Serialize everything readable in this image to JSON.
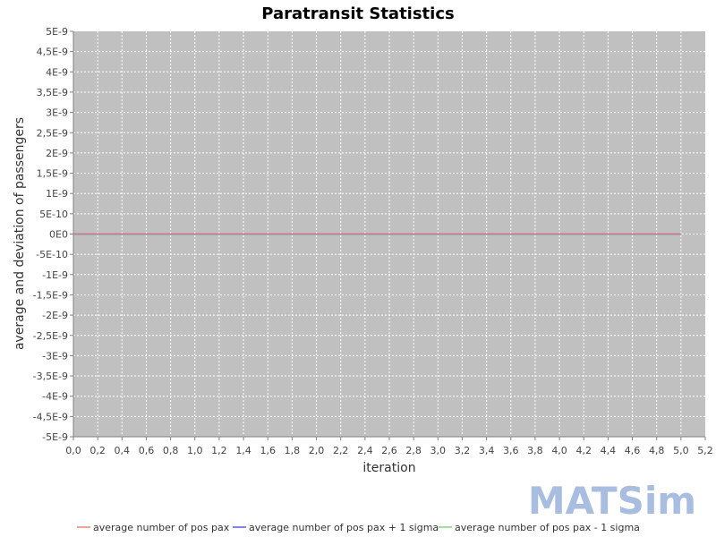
{
  "chart_data": {
    "type": "line",
    "title": "Paratransit Statistics",
    "xlabel": "iteration",
    "ylabel": "average and deviation of passengers",
    "xlim": [
      0.0,
      5.2
    ],
    "ylim": [
      -5e-09,
      5e-09
    ],
    "x_ticks": [
      "0,0",
      "0,2",
      "0,4",
      "0,6",
      "0,8",
      "1,0",
      "1,2",
      "1,4",
      "1,6",
      "1,8",
      "2,0",
      "2,2",
      "2,4",
      "2,6",
      "2,8",
      "3,0",
      "3,2",
      "3,4",
      "3,6",
      "3,8",
      "4,0",
      "4,2",
      "4,4",
      "4,6",
      "4,8",
      "5,0",
      "5,2"
    ],
    "y_ticks": [
      "5E-9",
      "4,5E-9",
      "4E-9",
      "3,5E-9",
      "3E-9",
      "2,5E-9",
      "2E-9",
      "1,5E-9",
      "1E-9",
      "5E-10",
      "0E0",
      "-5E-10",
      "-1E-9",
      "-1,5E-9",
      "-2E-9",
      "-2,5E-9",
      "-3E-9",
      "-3,5E-9",
      "-4E-9",
      "-4,5E-9",
      "-5E-9"
    ],
    "grid": true,
    "legend_position": "bottom",
    "x": [
      0,
      1,
      2,
      3,
      4,
      5
    ],
    "series": [
      {
        "name": "average number of pos pax",
        "color": "#e8837a",
        "values": [
          0,
          0,
          0,
          0,
          0,
          0
        ]
      },
      {
        "name": "average number of pos pax + 1 sigma",
        "color": "#5a5ad6",
        "values": [
          0,
          0,
          0,
          0,
          0,
          0
        ]
      },
      {
        "name": "average number of pos pax - 1 sigma",
        "color": "#7ed67e",
        "values": [
          0,
          0,
          0,
          0,
          0,
          0
        ]
      }
    ],
    "plot_background": "#c0c0c0"
  },
  "logo": {
    "text": "MATSim",
    "color": "#a8bde0"
  }
}
